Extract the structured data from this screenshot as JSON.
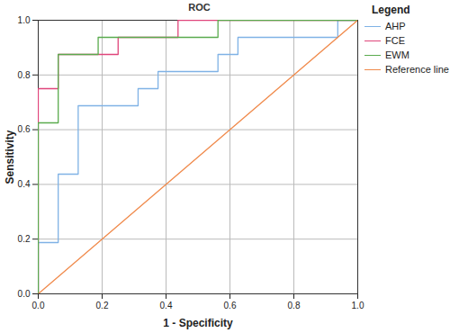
{
  "chart_data": {
    "type": "line",
    "title": "ROC",
    "x_label": "1 - Specificity",
    "y_label": "Sensitivity",
    "xlim": [
      0,
      1
    ],
    "ylim": [
      0,
      1
    ],
    "xticks": [
      {
        "value": 0,
        "label": "0.0"
      },
      {
        "value": 0.2,
        "label": "0.2"
      },
      {
        "value": 0.4,
        "label": "0.4"
      },
      {
        "value": 0.6,
        "label": "0.6"
      },
      {
        "value": 0.8,
        "label": "0.8"
      },
      {
        "value": 1,
        "label": "1.0"
      }
    ],
    "yticks": [
      {
        "value": 0,
        "label": "0.0"
      },
      {
        "value": 0.2,
        "label": "0.2"
      },
      {
        "value": 0.4,
        "label": "0.4"
      },
      {
        "value": 0.6,
        "label": "0.6"
      },
      {
        "value": 0.8,
        "label": "0.8"
      },
      {
        "value": 1,
        "label": "1.0"
      }
    ],
    "grid": true,
    "legend": "right",
    "legend_title": "Legend",
    "series": [
      {
        "name": "AHP",
        "color": "#7fb2e5",
        "x": [
          0,
          0,
          0.0625,
          0.0625,
          0.125,
          0.125,
          0.3125,
          0.3125,
          0.375,
          0.375,
          0.5625,
          0.5625,
          0.625,
          0.625,
          0.9375,
          0.9375,
          1
        ],
        "values": [
          0,
          0.1875,
          0.1875,
          0.4375,
          0.4375,
          0.6875,
          0.6875,
          0.75,
          0.75,
          0.8125,
          0.8125,
          0.875,
          0.875,
          0.9375,
          0.9375,
          1,
          1
        ]
      },
      {
        "name": "FCE",
        "color": "#e0457b",
        "x": [
          0,
          0,
          0.0625,
          0.0625,
          0.25,
          0.25,
          0.4375,
          0.4375,
          1
        ],
        "values": [
          0,
          0.75,
          0.75,
          0.875,
          0.875,
          0.9375,
          0.9375,
          1,
          1
        ]
      },
      {
        "name": "EWM",
        "color": "#5aab4e",
        "x": [
          0,
          0,
          0.0625,
          0.0625,
          0.1875,
          0.1875,
          0.5625,
          0.5625,
          1
        ],
        "values": [
          0,
          0.625,
          0.625,
          0.875,
          0.875,
          0.9375,
          0.9375,
          1,
          1
        ]
      },
      {
        "name": "Reference line",
        "color": "#f08a4b",
        "x": [
          0,
          1
        ],
        "values": [
          0,
          1
        ]
      }
    ]
  }
}
